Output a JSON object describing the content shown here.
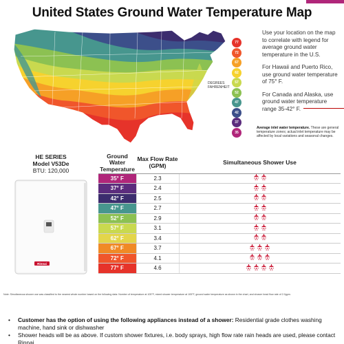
{
  "title": "United States Ground Water Temperature Map",
  "map": {
    "side_label": "DEGREES FAHRENHEIT",
    "legend": [
      {
        "value": "77",
        "color": "#e6332a"
      },
      {
        "value": "72",
        "color": "#f0562b"
      },
      {
        "value": "67",
        "color": "#f6a026"
      },
      {
        "value": "62",
        "color": "#f6d22e"
      },
      {
        "value": "57",
        "color": "#c9d94f"
      },
      {
        "value": "52",
        "color": "#8cc152"
      },
      {
        "value": "47",
        "color": "#47968e"
      },
      {
        "value": "42",
        "color": "#3c4f8a"
      },
      {
        "value": "37",
        "color": "#5b2c7d"
      },
      {
        "value": "35",
        "color": "#b0267a"
      }
    ]
  },
  "right_text": {
    "p1": "Use your location on the map to correlate with legend for average ground water temperature in the U.S.",
    "p2": "For Hawaii and Puerto Rico, use ground water temperature of 75° F.",
    "p3": "For Canada and Alaska, use ground water temperature range 35-42° F.",
    "note_title": "Average inlet water temperature.",
    "note_body": "These are general temperature zones; actual inlet temperature may be affected by local variations and seasonal changes."
  },
  "product": {
    "series": "HE SERIES",
    "model": "Model V53De",
    "btu": "BTU: 120,000",
    "brand": "Rinnai"
  },
  "table": {
    "headers": {
      "temp": "Ground Water Temperature",
      "flow": "Max Flow Rate (GPM)",
      "shower": "Simultaneous Shower Use"
    },
    "rows": [
      {
        "temp": "35° F",
        "flow": "2.3",
        "showers": 2,
        "color": "#b0267a"
      },
      {
        "temp": "37° F",
        "flow": "2.4",
        "showers": 2,
        "color": "#5b2c7d"
      },
      {
        "temp": "42° F",
        "flow": "2.5",
        "showers": 2,
        "color": "#3c2d6e"
      },
      {
        "temp": "47° F",
        "flow": "2.7",
        "showers": 2,
        "color": "#47968e"
      },
      {
        "temp": "52° F",
        "flow": "2.9",
        "showers": 2,
        "color": "#8cc152"
      },
      {
        "temp": "57° F",
        "flow": "3.1",
        "showers": 2,
        "color": "#c9d94f"
      },
      {
        "temp": "62° F",
        "flow": "3.4",
        "showers": 2,
        "color": "#e3d54a"
      },
      {
        "temp": "67° F",
        "flow": "3.7",
        "showers": 3,
        "color": "#f08a26"
      },
      {
        "temp": "72° F",
        "flow": "4.1",
        "showers": 3,
        "color": "#f0562b"
      },
      {
        "temp": "77° F",
        "flow": "4.6",
        "showers": 4,
        "color": "#e6332a"
      }
    ]
  },
  "footnote": "Note: Simultaneous shower use was classified to the nearest whole number based on the following data: Number of temperature at 105°F, mixed shower temperature at 105°F, ground water temperature as shown in the chart, and shower head flow rate of 2.0gpm.",
  "bullets": {
    "b1_bold": "Customer has the option of using the following appliances instead of a shower:",
    "b1_rest": " Residential grade clothes washing machine, hand sink or dishwasher",
    "b2": "Shower heads will be as above. If custom shower fixtures, i.e. body sprays, high flow rate rain heads are used, please contact Rinnai."
  }
}
